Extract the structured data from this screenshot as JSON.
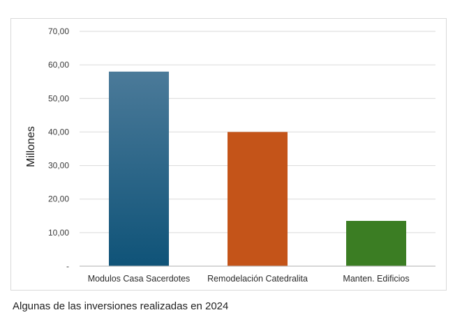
{
  "caption": "Algunas de las inversiones realizadas en 2024",
  "chart_data": {
    "type": "bar",
    "categories": [
      "Modulos Casa Sacerdotes",
      "Remodelación Catedralita",
      "Manten. Edificios"
    ],
    "values": [
      58,
      40,
      13.5
    ],
    "title": "",
    "xlabel": "",
    "ylabel": "Millones",
    "ylim": [
      0,
      70
    ],
    "yticks": [
      0,
      10,
      20,
      30,
      40,
      50,
      60,
      70
    ],
    "ytick_labels": [
      "-",
      "10,00",
      "20,00",
      "30,00",
      "40,00",
      "50,00",
      "60,00",
      "70,00"
    ],
    "grid": true,
    "legend": "none",
    "bar_colors": [
      {
        "top": "#4b7a99",
        "bottom": "#0f5378"
      },
      {
        "top": "#c45419",
        "bottom": "#c45419"
      },
      {
        "top": "#3b7d23",
        "bottom": "#3b7d23"
      }
    ],
    "gridline_color": "#d9d9d9",
    "axis_color": "#bfbfbf"
  }
}
